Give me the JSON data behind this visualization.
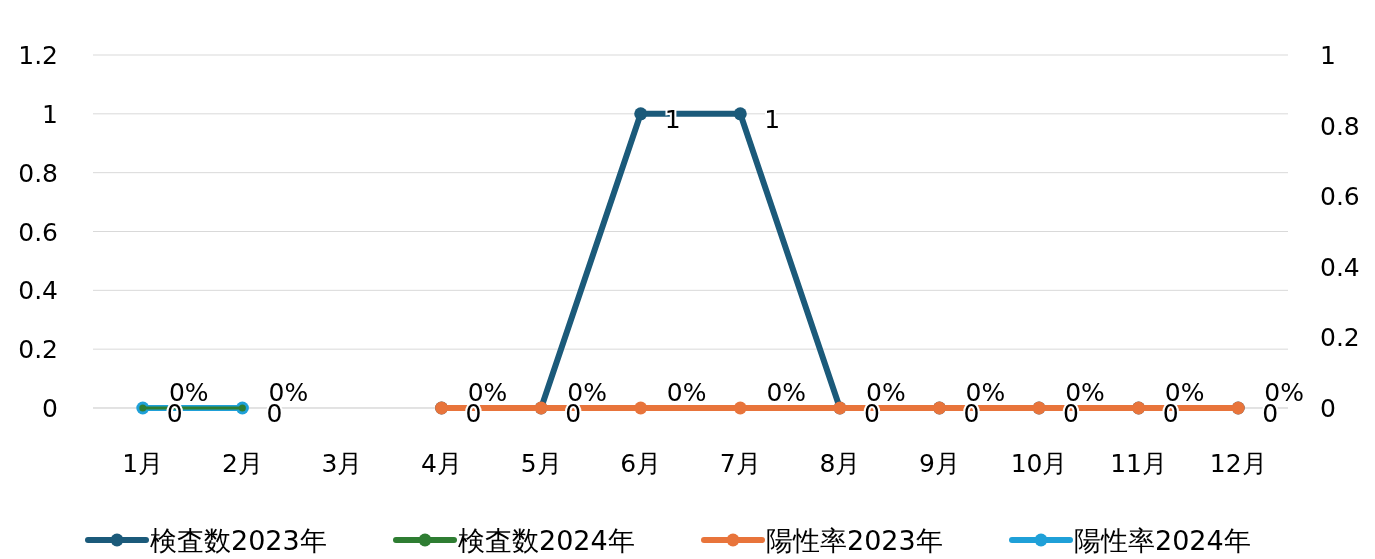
{
  "chart_data": {
    "type": "line",
    "categories": [
      "1月",
      "2月",
      "3月",
      "4月",
      "5月",
      "6月",
      "7月",
      "8月",
      "9月",
      "10月",
      "11月",
      "12月"
    ],
    "series": [
      {
        "name": "検査数2023年",
        "color": "#1b5a7a",
        "values": [
          null,
          null,
          null,
          0,
          0,
          1,
          1,
          0,
          0,
          0,
          0,
          0
        ],
        "value_labels": [
          null,
          null,
          null,
          "0",
          "0",
          "1",
          "1",
          "0",
          "0",
          "0",
          "0",
          "0"
        ]
      },
      {
        "name": "検査数2024年",
        "color": "#2e7d32",
        "values": [
          0,
          0,
          null,
          null,
          null,
          null,
          null,
          null,
          null,
          null,
          null,
          null
        ],
        "value_labels": [
          "0",
          "0",
          null,
          null,
          null,
          null,
          null,
          null,
          null,
          null,
          null,
          null
        ]
      },
      {
        "name": "陽性率2023年",
        "color": "#e8743b",
        "axis": "y2",
        "values": [
          null,
          null,
          null,
          0,
          0,
          0,
          0,
          0,
          0,
          0,
          0,
          0
        ],
        "value_labels": [
          null,
          null,
          null,
          "0%",
          "0%",
          "0%",
          "0%",
          "0%",
          "0%",
          "0%",
          "0%",
          "0%"
        ]
      },
      {
        "name": "陽性率2024年",
        "color": "#1fa0d8",
        "axis": "y2",
        "values": [
          0,
          0,
          null,
          null,
          null,
          null,
          null,
          null,
          null,
          null,
          null,
          null
        ],
        "value_labels": [
          "0%",
          "0%",
          null,
          null,
          null,
          null,
          null,
          null,
          null,
          null,
          null,
          null
        ]
      }
    ],
    "ylim": [
      0,
      1.2
    ],
    "yticks": [
      0,
      0.2,
      0.4,
      0.6,
      0.8,
      1,
      1.2
    ],
    "y2lim": [
      0,
      1
    ],
    "y2ticks": [
      0,
      0.2,
      0.4,
      0.6,
      0.8,
      1
    ],
    "grid": "y",
    "legend": "bottom",
    "marker": "circle",
    "line_style": "solid"
  }
}
